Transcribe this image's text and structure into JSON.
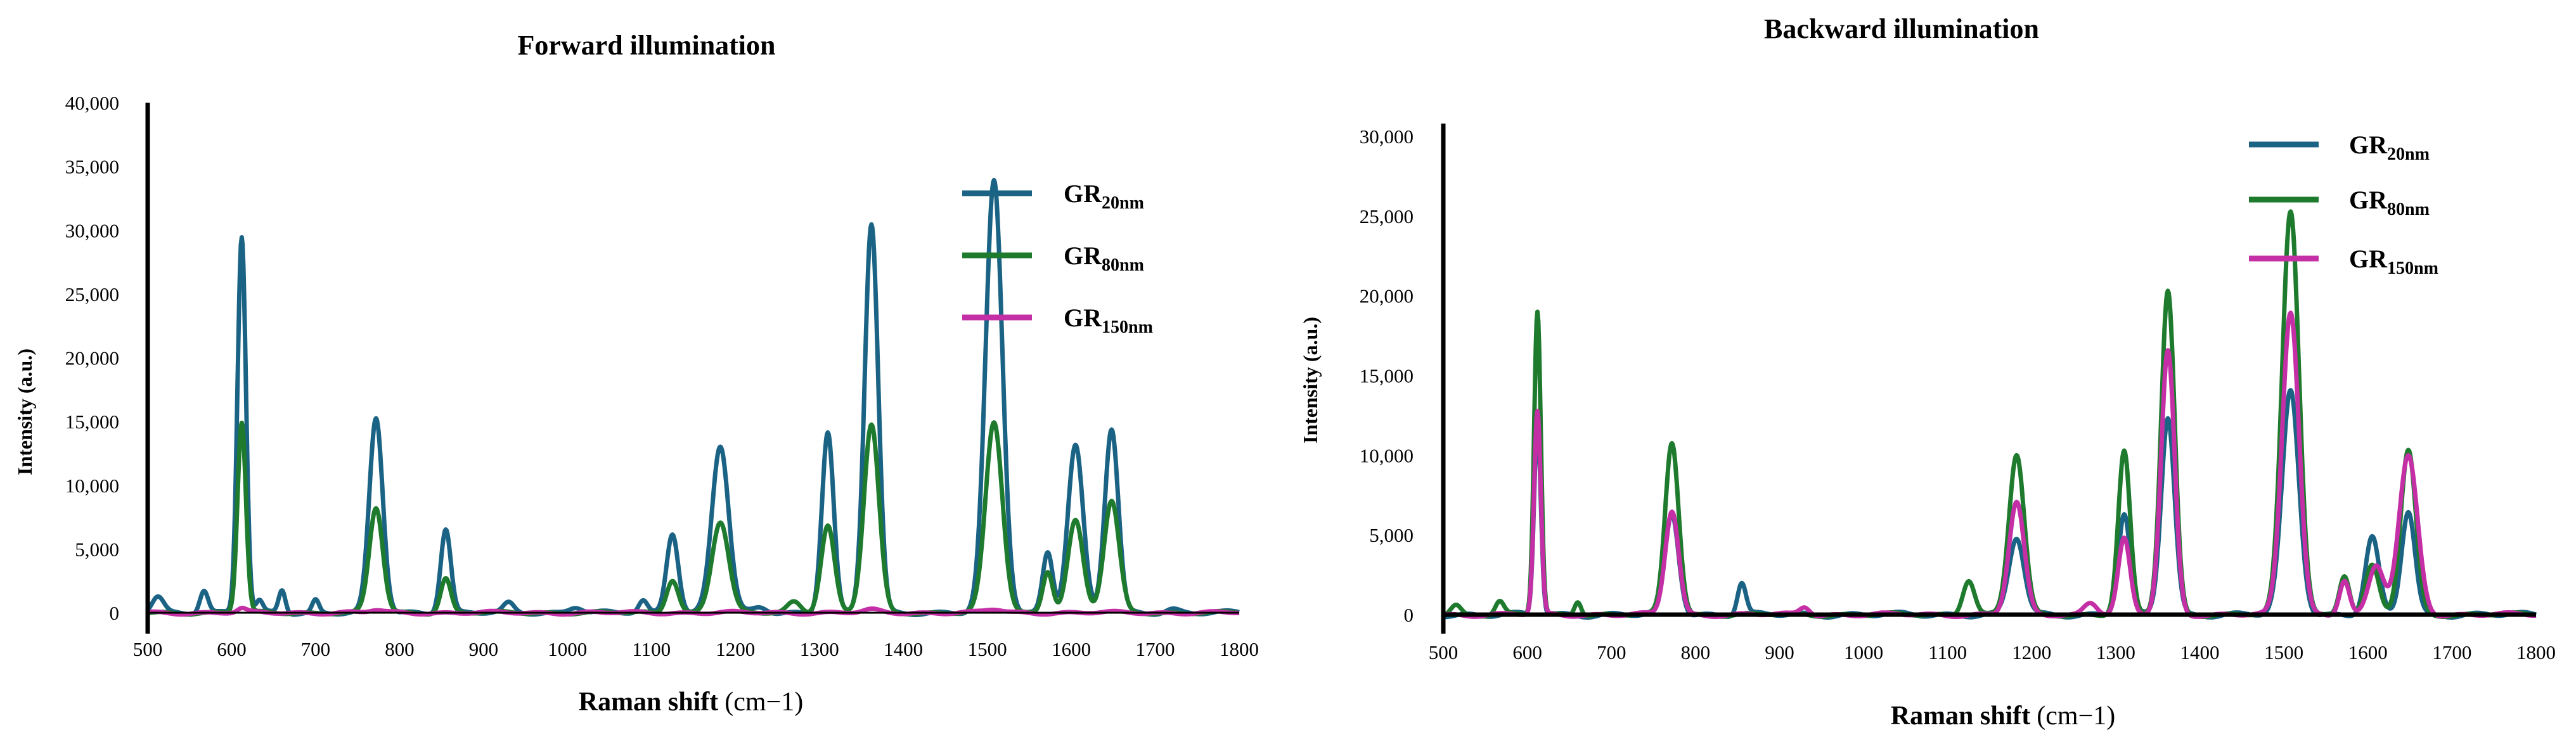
{
  "chart_data": [
    {
      "type": "line",
      "title": "Forward illumination",
      "xlabel": "Raman shift",
      "xlabel_unit": "(cm−1)",
      "ylabel": "Intensity (a.u.)",
      "xlim": [
        500,
        1800
      ],
      "ylim": [
        0,
        40000
      ],
      "xticks": [
        500,
        600,
        700,
        800,
        900,
        1000,
        1100,
        1200,
        1300,
        1400,
        1500,
        1600,
        1700,
        1800
      ],
      "yticks": [
        0,
        5000,
        10000,
        15000,
        20000,
        25000,
        30000,
        35000,
        40000
      ],
      "ytick_labels": [
        "0",
        "5,000",
        "10,000",
        "15,000",
        "20,000",
        "25,000",
        "30,000",
        "35,000",
        "40,000"
      ],
      "legend_position": "top-right",
      "series": [
        {
          "name": "GR",
          "sub": "20nm",
          "color": "#1B6384",
          "peaks": [
            [
              512,
              1300,
              7
            ],
            [
              567,
              1800,
              5
            ],
            [
              612,
              29500,
              5
            ],
            [
              633,
              900,
              4
            ],
            [
              660,
              1800,
              4
            ],
            [
              700,
              1000,
              4
            ],
            [
              772,
              15200,
              8
            ],
            [
              855,
              6600,
              6
            ],
            [
              930,
              700,
              6
            ],
            [
              1010,
              500,
              8
            ],
            [
              1090,
              900,
              5
            ],
            [
              1125,
              6300,
              7
            ],
            [
              1182,
              13100,
              10
            ],
            [
              1230,
              400,
              8
            ],
            [
              1310,
              14200,
              7
            ],
            [
              1362,
              30500,
              8
            ],
            [
              1508,
              33800,
              10
            ],
            [
              1572,
              4800,
              6
            ],
            [
              1605,
              13100,
              9
            ],
            [
              1648,
              14400,
              8
            ],
            [
              1720,
              300,
              8
            ]
          ]
        },
        {
          "name": "GR",
          "sub": "80nm",
          "color": "#1E7B2E",
          "peaks": [
            [
              612,
              14900,
              5
            ],
            [
              772,
              8200,
              8
            ],
            [
              855,
              2700,
              6
            ],
            [
              1125,
              2600,
              7
            ],
            [
              1182,
              7100,
              10
            ],
            [
              1270,
              900,
              8
            ],
            [
              1310,
              6800,
              8
            ],
            [
              1362,
              14700,
              9
            ],
            [
              1508,
              14900,
              10
            ],
            [
              1572,
              3300,
              6
            ],
            [
              1605,
              7200,
              9
            ],
            [
              1648,
              8700,
              9
            ]
          ]
        },
        {
          "name": "GR",
          "sub": "150nm",
          "color": "#C42FA6",
          "peaks": [
            [
              612,
              300,
              5
            ],
            [
              772,
              200,
              8
            ],
            [
              1362,
              200,
              9
            ],
            [
              1508,
              250,
              10
            ]
          ]
        }
      ]
    },
    {
      "type": "line",
      "title": "Backward illumination",
      "xlabel": "Raman shift",
      "xlabel_unit": "(cm−1)",
      "ylabel": "Intensity (a.u.)",
      "xlim": [
        500,
        1800
      ],
      "ylim": [
        0,
        30000
      ],
      "xticks": [
        500,
        600,
        700,
        800,
        900,
        1000,
        1100,
        1200,
        1300,
        1400,
        1500,
        1600,
        1700,
        1800
      ],
      "yticks": [
        0,
        5000,
        10000,
        15000,
        20000,
        25000,
        30000
      ],
      "ytick_labels": [
        "0",
        "5,000",
        "10,000",
        "15,000",
        "20,000",
        "25,000",
        "30,000"
      ],
      "legend_position": "top-right",
      "series": [
        {
          "name": "GR",
          "sub": "20nm",
          "color": "#1B6384",
          "peaks": [
            [
              612,
              12000,
              4
            ],
            [
              772,
              6300,
              8
            ],
            [
              855,
              2000,
              5
            ],
            [
              1182,
              4800,
              9
            ],
            [
              1310,
              6300,
              7
            ],
            [
              1362,
              12400,
              8
            ],
            [
              1508,
              14000,
              10
            ],
            [
              1605,
              4800,
              8
            ],
            [
              1648,
              6500,
              8
            ]
          ]
        },
        {
          "name": "GR",
          "sub": "80nm",
          "color": "#1E7B2E",
          "peaks": [
            [
              515,
              600,
              6
            ],
            [
              567,
              800,
              5
            ],
            [
              612,
              19000,
              4
            ],
            [
              660,
              900,
              4
            ],
            [
              772,
              10800,
              8
            ],
            [
              1125,
              2200,
              7
            ],
            [
              1182,
              10000,
              9
            ],
            [
              1310,
              10200,
              7
            ],
            [
              1362,
              20300,
              8
            ],
            [
              1508,
              25300,
              10
            ],
            [
              1572,
              2500,
              6
            ],
            [
              1605,
              3000,
              8
            ],
            [
              1648,
              10300,
              9
            ]
          ]
        },
        {
          "name": "GR",
          "sub": "150nm",
          "color": "#C42FA6",
          "peaks": [
            [
              612,
              12700,
              4
            ],
            [
              772,
              6500,
              8
            ],
            [
              930,
              500,
              6
            ],
            [
              1182,
              7000,
              9
            ],
            [
              1270,
              800,
              8
            ],
            [
              1310,
              4700,
              7
            ],
            [
              1362,
              16500,
              8
            ],
            [
              1508,
              19000,
              10
            ],
            [
              1572,
              2200,
              6
            ],
            [
              1610,
              3000,
              9
            ],
            [
              1648,
              9900,
              11
            ]
          ]
        }
      ]
    }
  ]
}
